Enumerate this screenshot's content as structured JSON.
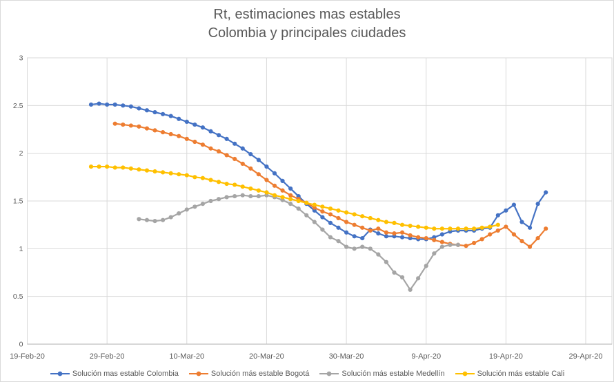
{
  "chart_data": {
    "type": "line",
    "title": "Rt, estimaciones mas estables",
    "subtitle": "Colombia y principales ciudades",
    "grid": true,
    "legend_position": "bottom",
    "x_axis": {
      "tick_labels": [
        "19-Feb-20",
        "29-Feb-20",
        "10-Mar-20",
        "20-Mar-20",
        "30-Mar-20",
        "9-Apr-20",
        "19-Apr-20",
        "29-Apr-20"
      ],
      "tick_interval_days": 10,
      "axis_extends_days": 73
    },
    "y_axis": {
      "min": 0,
      "max": 3,
      "step": 0.5,
      "tick_labels": [
        "0",
        "0.5",
        "1",
        "1.5",
        "2",
        "2.5",
        "3"
      ]
    },
    "series": [
      {
        "key": "colombia",
        "name": "Solución mas estable Colombia",
        "color": "#4472C4",
        "marker": "circle",
        "start_date": "27-Feb-20",
        "start_day_offset": 8,
        "values": [
          2.51,
          2.52,
          2.51,
          2.51,
          2.5,
          2.49,
          2.47,
          2.45,
          2.43,
          2.41,
          2.39,
          2.36,
          2.33,
          2.3,
          2.27,
          2.23,
          2.19,
          2.15,
          2.1,
          2.05,
          1.99,
          1.93,
          1.86,
          1.79,
          1.71,
          1.63,
          1.55,
          1.47,
          1.4,
          1.33,
          1.27,
          1.22,
          1.17,
          1.13,
          1.11,
          1.2,
          1.16,
          1.13,
          1.13,
          1.12,
          1.11,
          1.1,
          1.1,
          1.12,
          1.15,
          1.18,
          1.19,
          1.19,
          1.19,
          1.21,
          1.22,
          1.35,
          1.4,
          1.46,
          1.28,
          1.22,
          1.47,
          1.59
        ]
      },
      {
        "key": "bogota",
        "name": "Solución más estable Bogotá",
        "color": "#ED7D31",
        "marker": "circle",
        "start_date": "1-Mar-20",
        "start_day_offset": 11,
        "values": [
          2.31,
          2.3,
          2.29,
          2.28,
          2.26,
          2.24,
          2.22,
          2.2,
          2.18,
          2.15,
          2.12,
          2.09,
          2.05,
          2.02,
          1.98,
          1.94,
          1.89,
          1.84,
          1.78,
          1.72,
          1.66,
          1.61,
          1.56,
          1.52,
          1.48,
          1.43,
          1.39,
          1.36,
          1.32,
          1.28,
          1.25,
          1.22,
          1.19,
          1.21,
          1.17,
          1.16,
          1.17,
          1.14,
          1.12,
          1.11,
          1.09,
          1.07,
          1.05,
          1.04,
          1.03,
          1.06,
          1.1,
          1.15,
          1.19,
          1.23,
          1.15,
          1.08,
          1.02,
          1.11,
          1.21
        ]
      },
      {
        "key": "medellin",
        "name": "Solución más estable Medellín",
        "color": "#A5A5A5",
        "marker": "circle",
        "start_date": "4-Mar-20",
        "start_day_offset": 14,
        "values": [
          1.31,
          1.3,
          1.29,
          1.3,
          1.33,
          1.37,
          1.41,
          1.44,
          1.47,
          1.5,
          1.52,
          1.54,
          1.55,
          1.56,
          1.55,
          1.55,
          1.56,
          1.54,
          1.51,
          1.47,
          1.42,
          1.35,
          1.28,
          1.2,
          1.12,
          1.08,
          1.02,
          1.0,
          1.02,
          1.0,
          0.94,
          0.86,
          0.75,
          0.7,
          0.57,
          0.69,
          0.82,
          0.95,
          1.02,
          1.04,
          1.04
        ]
      },
      {
        "key": "cali",
        "name": "Solución más estable Cali",
        "color": "#FFC000",
        "marker": "circle",
        "start_date": "27-Feb-20",
        "start_day_offset": 8,
        "values": [
          1.86,
          1.86,
          1.86,
          1.85,
          1.85,
          1.84,
          1.83,
          1.82,
          1.81,
          1.8,
          1.79,
          1.78,
          1.77,
          1.75,
          1.74,
          1.72,
          1.7,
          1.68,
          1.67,
          1.65,
          1.63,
          1.61,
          1.59,
          1.56,
          1.54,
          1.52,
          1.5,
          1.48,
          1.46,
          1.44,
          1.42,
          1.4,
          1.38,
          1.36,
          1.34,
          1.32,
          1.3,
          1.28,
          1.27,
          1.25,
          1.24,
          1.23,
          1.22,
          1.21,
          1.21,
          1.21,
          1.21,
          1.21,
          1.21,
          1.22,
          1.23,
          1.25
        ]
      }
    ],
    "colors": {
      "gridline": "#D9D9D9",
      "axis_line": "#BFBFBF",
      "text": "#595959",
      "background": "#FFFFFF"
    }
  }
}
